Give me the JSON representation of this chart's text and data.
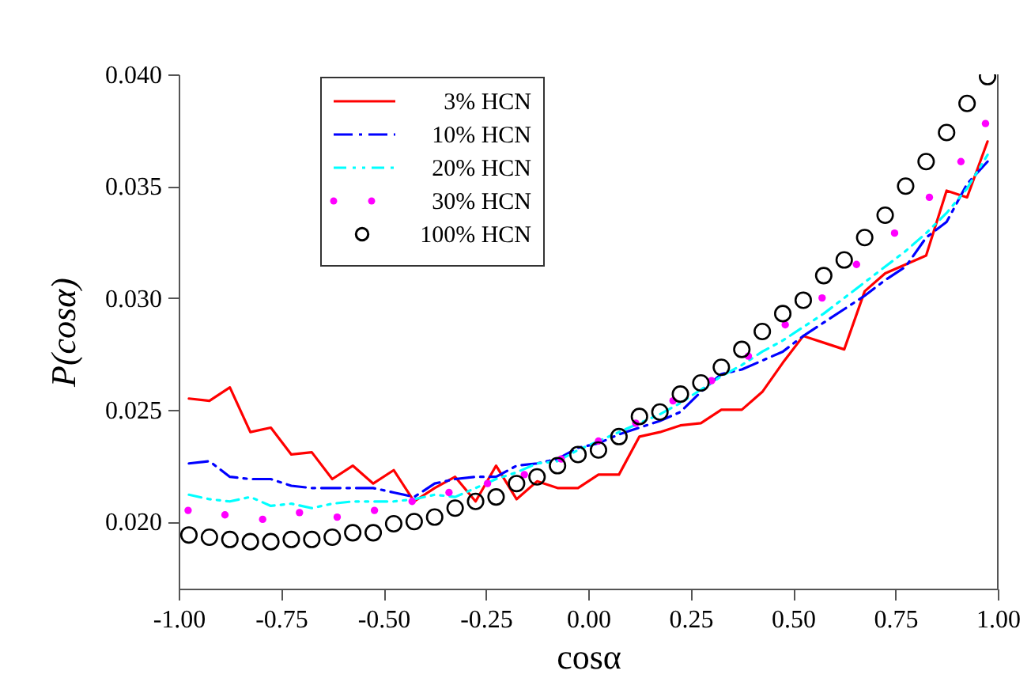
{
  "chart_data": {
    "type": "line",
    "xlabel": "cosα",
    "ylabel": "P(cosα)",
    "x": [
      -0.975,
      -0.925,
      -0.875,
      -0.825,
      -0.775,
      -0.725,
      -0.675,
      -0.625,
      -0.575,
      -0.525,
      -0.475,
      -0.425,
      -0.375,
      -0.325,
      -0.275,
      -0.225,
      -0.175,
      -0.125,
      -0.075,
      -0.025,
      0.025,
      0.075,
      0.125,
      0.175,
      0.225,
      0.275,
      0.325,
      0.375,
      0.425,
      0.475,
      0.525,
      0.575,
      0.625,
      0.675,
      0.725,
      0.775,
      0.825,
      0.875,
      0.925,
      0.975
    ],
    "series": [
      {
        "name": "3% HCN",
        "color": "#ff0000",
        "line_style": "solid",
        "values": [
          0.0255,
          0.0254,
          0.026,
          0.024,
          0.0242,
          0.023,
          0.0231,
          0.0219,
          0.0225,
          0.0217,
          0.0223,
          0.0209,
          0.0215,
          0.022,
          0.0209,
          0.0225,
          0.021,
          0.0218,
          0.0215,
          0.0215,
          0.0221,
          0.0221,
          0.0238,
          0.024,
          0.0243,
          0.0244,
          0.025,
          0.025,
          0.0258,
          0.0271,
          0.0283,
          0.028,
          0.0277,
          0.0303,
          0.0311,
          0.0315,
          0.0319,
          0.0348,
          0.0345,
          0.037
        ]
      },
      {
        "name": "10% HCN",
        "color": "#0000ff",
        "line_style": "dashdot",
        "values": [
          0.0226,
          0.0227,
          0.022,
          0.0219,
          0.0219,
          0.0216,
          0.0215,
          0.0215,
          0.0215,
          0.0215,
          0.0213,
          0.0211,
          0.0217,
          0.0219,
          0.022,
          0.022,
          0.0225,
          0.0226,
          0.0228,
          0.0233,
          0.0235,
          0.0239,
          0.0242,
          0.0245,
          0.0249,
          0.0258,
          0.0266,
          0.0268,
          0.0272,
          0.0276,
          0.0283,
          0.0289,
          0.0295,
          0.0301,
          0.0308,
          0.0314,
          0.0327,
          0.0334,
          0.0351,
          0.0361
        ]
      },
      {
        "name": "20% HCN",
        "color": "#00ffff",
        "line_style": "dashdotdot",
        "values": [
          0.0212,
          0.021,
          0.0209,
          0.0211,
          0.0207,
          0.0208,
          0.0206,
          0.0208,
          0.0209,
          0.0209,
          0.0209,
          0.021,
          0.0212,
          0.0211,
          0.0215,
          0.0219,
          0.0222,
          0.0226,
          0.0227,
          0.0232,
          0.0236,
          0.024,
          0.0244,
          0.0248,
          0.0253,
          0.0259,
          0.0265,
          0.027,
          0.0276,
          0.0281,
          0.0287,
          0.0293,
          0.03,
          0.0307,
          0.0314,
          0.0321,
          0.0329,
          0.0338,
          0.0349,
          0.0364
        ]
      },
      {
        "name": "30% HCN",
        "color": "#ff00ff",
        "type": "scatter",
        "x": [
          -0.977,
          -0.887,
          -0.795,
          -0.705,
          -0.613,
          -0.522,
          -0.43,
          -0.34,
          -0.246,
          -0.156,
          -0.066,
          0.025,
          0.116,
          0.207,
          0.301,
          0.391,
          0.481,
          0.571,
          0.655,
          0.748,
          0.833,
          0.91,
          0.97
        ],
        "values": [
          0.0205,
          0.0203,
          0.0201,
          0.0204,
          0.0202,
          0.0205,
          0.0209,
          0.0213,
          0.0217,
          0.0221,
          0.0228,
          0.0236,
          0.0244,
          0.0254,
          0.0263,
          0.0274,
          0.0288,
          0.03,
          0.0315,
          0.0329,
          0.0345,
          0.0361,
          0.0378
        ]
      },
      {
        "name": "100% HCN",
        "color": "#000000",
        "type": "scatter",
        "marker": "circle",
        "values": [
          0.0194,
          0.0193,
          0.0192,
          0.0191,
          0.0191,
          0.0192,
          0.0192,
          0.0193,
          0.0195,
          0.0195,
          0.0199,
          0.02,
          0.0202,
          0.0206,
          0.0209,
          0.0211,
          0.0217,
          0.022,
          0.0225,
          0.023,
          0.0232,
          0.0238,
          0.0247,
          0.0249,
          0.0257,
          0.0262,
          0.0269,
          0.0277,
          0.0285,
          0.0293,
          0.0299,
          0.031,
          0.0317,
          0.0327,
          0.0337,
          0.035,
          0.0361,
          0.0374,
          0.0387,
          0.0399
        ]
      }
    ],
    "xlim": [
      -1,
      1
    ],
    "xticks": [
      {
        "value": -1,
        "label": "-1.00"
      },
      {
        "value": -0.75,
        "label": "-0.75"
      },
      {
        "value": -0.5,
        "label": "-0.50"
      },
      {
        "value": -0.25,
        "label": "-0.25"
      },
      {
        "value": 0,
        "label": "0.00"
      },
      {
        "value": 0.25,
        "label": "0.25"
      },
      {
        "value": 0.5,
        "label": "0.50"
      },
      {
        "value": 0.75,
        "label": "0.75"
      },
      {
        "value": 1,
        "label": "1.00"
      }
    ],
    "ylim": [
      0.017,
      0.04
    ],
    "yticks": [
      {
        "value": 0.02,
        "label": "0.020"
      },
      {
        "value": 0.025,
        "label": "0.025"
      },
      {
        "value": 0.03,
        "label": "0.030"
      },
      {
        "value": 0.035,
        "label": "0.035"
      },
      {
        "value": 0.04,
        "label": "0.040"
      }
    ],
    "legend": "top left"
  }
}
